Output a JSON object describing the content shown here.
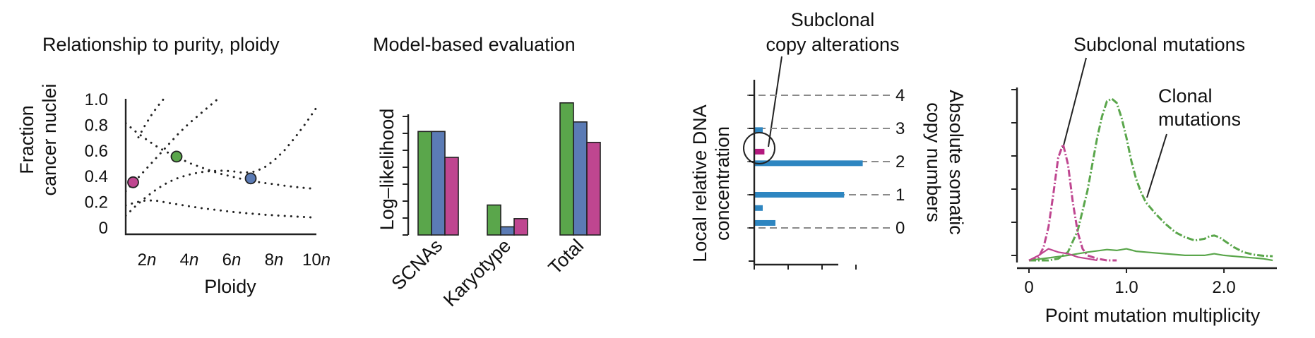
{
  "colors": {
    "green": "#5aa64b",
    "blue": "#5b7bb5",
    "magenta": "#bf4690",
    "deep_magenta": "#b3197e",
    "dna_blue": "#2e86c1",
    "grid": "#8a8a8a",
    "ink": "#222222"
  },
  "chart_data": [
    {
      "type": "scatter",
      "title": "Relationship to purity, ploidy",
      "xlabel": "Ploidy",
      "ylabel": [
        "Fraction",
        "cancer nuclei"
      ],
      "xlim": [
        1,
        10
      ],
      "ylim": [
        0,
        1
      ],
      "xticks": [
        2,
        4,
        6,
        8,
        10
      ],
      "xtick_labels": [
        {
          "num": "2",
          "sym": "n"
        },
        {
          "num": "4",
          "sym": "n"
        },
        {
          "num": "6",
          "sym": "n"
        },
        {
          "num": "8",
          "sym": "n"
        },
        {
          "num": "10",
          "sym": "n"
        }
      ],
      "yticks": [
        0,
        0.2,
        0.4,
        0.6,
        0.8,
        1.0
      ],
      "ytick_labels": [
        "0",
        "0.2",
        "0.4",
        "0.6",
        "0.8",
        "1.0"
      ],
      "curves": [
        {
          "style": "dotted",
          "x": [
            1.0,
            1.5,
            2.0,
            2.5,
            3.0,
            3.5,
            4.0,
            4.5,
            5.0,
            5.5,
            6.0,
            6.5,
            7.0,
            7.5,
            8.0,
            8.5,
            9.0,
            9.5,
            10.0
          ],
          "y": [
            0.17,
            0.195,
            0.21,
            0.205,
            0.19,
            0.177,
            0.163,
            0.15,
            0.14,
            0.13,
            0.12,
            0.112,
            0.105,
            0.098,
            0.093,
            0.088,
            0.083,
            0.079,
            0.075
          ]
        },
        {
          "style": "dotted",
          "x": [
            1.0,
            1.5,
            2.0,
            2.5,
            3.0,
            3.5,
            4.0,
            4.5,
            5.0,
            5.5,
            6.0,
            6.5,
            7.0,
            7.5,
            8.0,
            8.5,
            9.0,
            9.5,
            10.0
          ],
          "y": [
            0.81,
            0.74,
            0.68,
            0.625,
            0.58,
            0.54,
            0.5,
            0.47,
            0.44,
            0.415,
            0.395,
            0.375,
            0.36,
            0.345,
            0.335,
            0.323,
            0.313,
            0.305,
            0.298
          ]
        },
        {
          "style": "dotted",
          "x": [
            1.0,
            1.5,
            2.0,
            2.5,
            3.0,
            3.5,
            4.0,
            4.5,
            5.0,
            5.5,
            6.0,
            6.5,
            7.0,
            7.5,
            8.0,
            8.5,
            9.0,
            9.5,
            10.0
          ],
          "y": [
            0.09,
            0.17,
            0.24,
            0.3,
            0.35,
            0.385,
            0.41,
            0.428,
            0.437,
            0.44,
            0.437,
            0.425,
            0.43,
            0.46,
            0.52,
            0.6,
            0.7,
            0.81,
            0.93
          ]
        },
        {
          "style": "dotted",
          "x": [
            1.0,
            1.5,
            2.0,
            2.5,
            3.0,
            3.5,
            4.0,
            4.5,
            5.0,
            5.5
          ],
          "y": [
            0.28,
            0.37,
            0.46,
            0.55,
            0.64,
            0.73,
            0.81,
            0.88,
            0.95,
            1.02
          ]
        },
        {
          "style": "dotted",
          "x": [
            1.6,
            1.9,
            2.2,
            2.5,
            2.8
          ],
          "y": [
            0.7,
            0.79,
            0.87,
            0.94,
            1.0
          ]
        }
      ],
      "points": [
        {
          "x": 1.35,
          "y": 0.35,
          "color": "magenta"
        },
        {
          "x": 3.4,
          "y": 0.55,
          "color": "green"
        },
        {
          "x": 6.9,
          "y": 0.38,
          "color": "blue"
        }
      ]
    },
    {
      "type": "bar",
      "title": "Model-based evaluation",
      "ylabel": "Log–likelihood",
      "categories": [
        "SCNAs",
        "Karyotype",
        "Total"
      ],
      "ylim": [
        0,
        1
      ],
      "series": [
        {
          "color": "green",
          "values": [
            0.76,
            0.22,
            0.97
          ]
        },
        {
          "color": "blue",
          "values": [
            0.76,
            0.06,
            0.83
          ]
        },
        {
          "color": "magenta",
          "values": [
            0.57,
            0.12,
            0.68
          ]
        }
      ]
    },
    {
      "type": "bar",
      "orientation": "horizontal",
      "ylabel": [
        "Local relative DNA",
        "concentration"
      ],
      "right_label": [
        "Absolute somatic",
        "copy numbers"
      ],
      "annotation": [
        "Subclonal",
        "copy alterations"
      ],
      "copy_levels": [
        0,
        1,
        2,
        3,
        4
      ],
      "copy_level_labels": [
        "0",
        "1",
        "2",
        "3",
        "4"
      ],
      "bars": [
        {
          "y": 0.15,
          "value": 0.25,
          "color": "dna_blue"
        },
        {
          "y": 0.6,
          "value": 0.1,
          "color": "dna_blue"
        },
        {
          "y": 1.0,
          "value": 1.06,
          "color": "dna_blue"
        },
        {
          "y": 1.95,
          "value": 1.28,
          "color": "dna_blue"
        },
        {
          "y": 2.3,
          "value": 0.12,
          "color": "deep_magenta"
        },
        {
          "y": 2.95,
          "value": 0.1,
          "color": "dna_blue"
        }
      ],
      "xlim": [
        0,
        1.3
      ],
      "xticks": [
        0,
        0.4,
        0.8,
        1.2
      ]
    },
    {
      "type": "line",
      "xlabel": "Point mutation multiplicity",
      "xlim": [
        0,
        2.55
      ],
      "ylim": [
        0,
        1
      ],
      "xticks": [
        0,
        1.0,
        2.0
      ],
      "xtick_labels": [
        "0",
        "1.0",
        "2.0"
      ],
      "annotations": [
        [
          "Subclonal mutations"
        ],
        [
          "Clonal",
          "mutations"
        ]
      ],
      "series": [
        {
          "color": "green",
          "style": "dashdot",
          "x": [
            0.0,
            0.1,
            0.2,
            0.3,
            0.4,
            0.5,
            0.6,
            0.65,
            0.7,
            0.75,
            0.8,
            0.85,
            0.9,
            0.95,
            1.0,
            1.05,
            1.1,
            1.15,
            1.2,
            1.3,
            1.4,
            1.5,
            1.6,
            1.7,
            1.8,
            1.85,
            1.9,
            1.95,
            2.0,
            2.1,
            2.2,
            2.3,
            2.4,
            2.5
          ],
          "y": [
            0.0,
            0.0,
            0.0,
            0.01,
            0.05,
            0.18,
            0.42,
            0.58,
            0.74,
            0.87,
            0.96,
            0.975,
            0.95,
            0.86,
            0.74,
            0.6,
            0.49,
            0.41,
            0.35,
            0.28,
            0.22,
            0.17,
            0.14,
            0.12,
            0.13,
            0.145,
            0.15,
            0.14,
            0.12,
            0.08,
            0.05,
            0.035,
            0.028,
            0.025
          ]
        },
        {
          "color": "magenta",
          "style": "dashdot",
          "x": [
            0.0,
            0.1,
            0.15,
            0.2,
            0.25,
            0.3,
            0.35,
            0.4,
            0.45,
            0.5,
            0.55,
            0.6,
            0.7,
            0.8,
            0.9
          ],
          "y": [
            0.0,
            0.02,
            0.08,
            0.2,
            0.4,
            0.62,
            0.7,
            0.58,
            0.35,
            0.17,
            0.07,
            0.03,
            0.01,
            0.0,
            0.0
          ]
        },
        {
          "color": "green",
          "style": "solid",
          "x": [
            0.0,
            0.2,
            0.4,
            0.6,
            0.8,
            0.9,
            1.0,
            1.1,
            1.2,
            1.4,
            1.6,
            1.8,
            1.9,
            2.0,
            2.2,
            2.4,
            2.5
          ],
          "y": [
            0.0,
            0.015,
            0.03,
            0.05,
            0.065,
            0.06,
            0.07,
            0.055,
            0.05,
            0.04,
            0.03,
            0.03,
            0.04,
            0.03,
            0.02,
            0.01,
            0.0
          ]
        },
        {
          "color": "magenta",
          "style": "solid",
          "x": [
            0.0,
            0.1,
            0.2,
            0.3,
            0.4,
            0.5,
            0.6,
            0.7
          ],
          "y": [
            0.0,
            0.03,
            0.07,
            0.05,
            0.04,
            0.02,
            0.01,
            0.0
          ]
        }
      ]
    }
  ]
}
